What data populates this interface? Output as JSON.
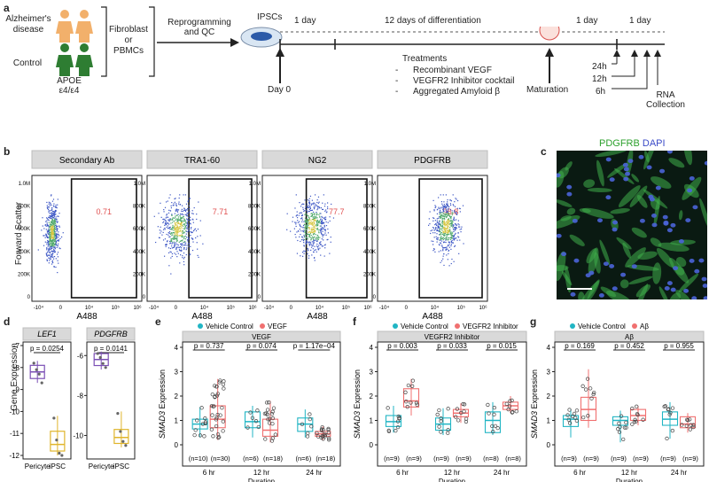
{
  "panel_labels": {
    "a": "a",
    "b": "b",
    "c": "c",
    "d": "d",
    "e": "e",
    "f": "f",
    "g": "g"
  },
  "panel_a": {
    "groups": [
      "Alzheimer's disease",
      "Control"
    ],
    "genotype": "APOE\nε4/ε4",
    "source": "Fibroblast\nor\nPBMCs",
    "step": "Reprogramming\nand QC",
    "ipscs": "IPSCs",
    "timeline": [
      "1 day",
      "12 days of differentiation",
      "1 day",
      "1 day"
    ],
    "day0": "Day 0",
    "maturation": "Maturation",
    "treatments_title": "Treatments",
    "treatments": [
      "Recombinant VEGF",
      "VEGFR2 Inhibitor cocktail",
      "Aggregated Amyloid β"
    ],
    "timepoints": [
      "24h",
      "12h",
      "6h"
    ],
    "rna": "RNA\nCollection",
    "colors": {
      "ad": "#f2b06b",
      "control": "#2e7d32"
    }
  },
  "panel_b": {
    "ylabel": "Forward Scatter",
    "xlabel": "A488",
    "yticks": [
      "1.0M",
      "800K",
      "600K",
      "400K",
      "200K",
      "0"
    ],
    "xticks": [
      "-10⁴",
      "0",
      "10⁴",
      "10⁵",
      "10⁶"
    ],
    "plots": [
      {
        "title": "Secondary Ab",
        "gate_pct": "0.71"
      },
      {
        "title": "TRA1-60",
        "gate_pct": "7.71"
      },
      {
        "title": "NG2",
        "gate_pct": "77.7"
      },
      {
        "title": "PDGFRB",
        "gate_pct": "98.8"
      }
    ]
  },
  "panel_c": {
    "stain1": "PDGFRB",
    "stain2": "DAPI",
    "color1": "#2ca02c",
    "color2": "#3b4bc8"
  },
  "panel_d": {
    "ylabel": "Gene Expression",
    "categories": [
      "Pericyte",
      "iPSC"
    ],
    "genes": [
      {
        "name": "LEF1",
        "p": "p = 0.0254",
        "yticks": [
          "-7",
          "-8",
          "-9",
          "-10",
          "-11",
          "-12"
        ],
        "ymin": -12,
        "ymax": -7,
        "pericyte": {
          "q1": -8.5,
          "med": -8.2,
          "q3": -7.9,
          "lo": -8.7,
          "hi": -7.7,
          "pts": [
            -7.8,
            -8.1,
            -8.3,
            -8.7
          ]
        },
        "ipsc": {
          "q1": -11.8,
          "med": -11.5,
          "q3": -10.9,
          "lo": -12,
          "hi": -10.2,
          "pts": [
            -10.3,
            -11.3,
            -11.9,
            -12
          ]
        }
      },
      {
        "name": "PDGFRB",
        "p": "p = 0.0141",
        "yticks": [
          "-6",
          "-8",
          "-10"
        ],
        "ymin": -11,
        "ymax": -5.5,
        "pericyte": {
          "q1": -6.5,
          "med": -6.2,
          "q3": -5.9,
          "lo": -6.7,
          "hi": -5.8,
          "pts": [
            -5.9,
            -6.1,
            -6.4,
            -6.6
          ]
        },
        "ipsc": {
          "q1": -10.4,
          "med": -10.1,
          "q3": -9.7,
          "lo": -10.6,
          "hi": -8.8,
          "pts": [
            -8.9,
            -9.8,
            -10.3,
            -10.5
          ]
        }
      }
    ],
    "colors": {
      "pericyte": "#7b4fb5",
      "ipsc": "#e0b52c"
    }
  },
  "chart_data": [
    {
      "type": "box",
      "panel": "e",
      "strip": "VEGF",
      "legend": [
        "Vehicle Control",
        "VEGF"
      ],
      "ylabel": "SMAD3 Expression",
      "xlabel": "",
      "ylim": [
        0,
        4
      ],
      "yticks": [
        "0",
        "1",
        "2",
        "3",
        "4"
      ],
      "categories": [
        "6 hr",
        "12 hr",
        "24 hr"
      ],
      "pvalues": [
        "p = 0.737",
        "p = 0.074",
        "p = 1.17e−04"
      ],
      "ns": [
        [
          "(n=10)",
          "(n=30)"
        ],
        [
          "(n=6)",
          "(n=18)"
        ],
        [
          "(n=6)",
          "(n=18)"
        ]
      ],
      "series": [
        {
          "name": "Vehicle Control",
          "color": "#21b5c4",
          "boxes": [
            [
              0.65,
              0.85,
              1.05,
              0.3,
              1.55
            ],
            [
              0.7,
              0.95,
              1.35,
              0.3,
              1.6
            ],
            [
              0.55,
              0.85,
              1.1,
              0.3,
              1.45
            ]
          ]
        },
        {
          "name": "VEGF",
          "color": "#f07070",
          "boxes": [
            [
              0.7,
              1.05,
              1.6,
              0.2,
              2.7
            ],
            [
              0.35,
              0.6,
              1.05,
              0.1,
              1.8
            ],
            [
              0.35,
              0.45,
              0.55,
              0.2,
              0.75
            ]
          ]
        }
      ]
    },
    {
      "type": "box",
      "panel": "f",
      "strip": "VEGFR2 Inhibitor",
      "legend": [
        "Vehicle Control",
        "VEGFR2 Inhibitor"
      ],
      "ylabel": "SMAD3 Expression",
      "xlabel": "Duration",
      "ylim": [
        0,
        4
      ],
      "yticks": [
        "0",
        "1",
        "2",
        "3",
        "4"
      ],
      "categories": [
        "6 hr",
        "12 hr",
        "24 hr"
      ],
      "pvalues": [
        "p = 0.003",
        "p = 0.033",
        "p = 0.015"
      ],
      "ns": [
        [
          "(n=9)",
          "(n=9)"
        ],
        [
          "(n=9)",
          "(n=9)"
        ],
        [
          "(n=8)",
          "(n=8)"
        ]
      ],
      "series": [
        {
          "name": "Vehicle Control",
          "color": "#21b5c4",
          "boxes": [
            [
              0.75,
              0.95,
              1.2,
              0.5,
              1.6
            ],
            [
              0.6,
              0.85,
              1.1,
              0.4,
              1.5
            ],
            [
              0.5,
              1.0,
              1.35,
              0.4,
              1.75
            ]
          ]
        },
        {
          "name": "VEGFR2 Inhibitor",
          "color": "#f07070",
          "boxes": [
            [
              1.55,
              1.8,
              2.3,
              1.2,
              2.7
            ],
            [
              1.15,
              1.3,
              1.45,
              0.9,
              1.7
            ],
            [
              1.45,
              1.6,
              1.75,
              1.3,
              2.0
            ]
          ]
        }
      ]
    },
    {
      "type": "box",
      "panel": "g",
      "strip": "Aβ",
      "legend": [
        "Vehicle Control",
        "Aβ"
      ],
      "ylabel": "SMAD3 Expression",
      "xlabel": "",
      "ylim": [
        0,
        4
      ],
      "yticks": [
        "0",
        "1",
        "2",
        "3",
        "4"
      ],
      "categories": [
        "6 hr",
        "12 hr",
        "24 hr"
      ],
      "pvalues": [
        "p = 0.169",
        "p = 0.452",
        "p = 0.955"
      ],
      "ns": [
        [
          "(n=9)",
          "(n=9)"
        ],
        [
          "(n=9)",
          "(n=9)"
        ],
        [
          "(n=9)",
          "(n=9)"
        ]
      ],
      "series": [
        {
          "name": "Vehicle Control",
          "color": "#21b5c4",
          "boxes": [
            [
              0.75,
              1.05,
              1.2,
              0.3,
              1.45
            ],
            [
              0.8,
              1.0,
              1.15,
              0.1,
              1.4
            ],
            [
              0.8,
              1.05,
              1.35,
              0.25,
              1.75
            ]
          ]
        },
        {
          "name": "Aβ",
          "color": "#f07070",
          "boxes": [
            [
              1.0,
              1.45,
              1.95,
              0.7,
              3.1
            ],
            [
              1.0,
              1.2,
              1.45,
              0.8,
              1.6
            ],
            [
              0.7,
              0.85,
              1.15,
              0.5,
              1.3
            ]
          ]
        }
      ]
    }
  ],
  "axis_extra": {
    "e_xlabel": "Duration",
    "g_xlabel": "Duration"
  }
}
